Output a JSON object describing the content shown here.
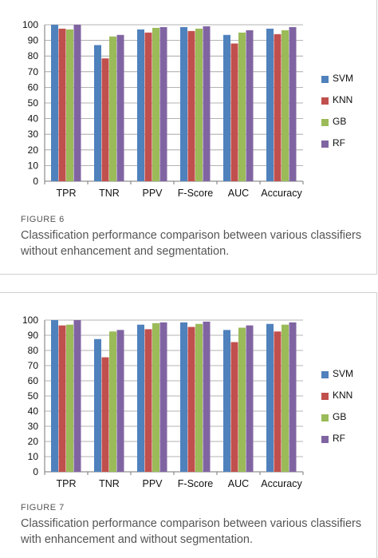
{
  "colors": {
    "SVM": "#4f81bd",
    "KNN": "#c0504d",
    "GB": "#9bbb59",
    "RF": "#8064a2",
    "grid": "#9a9a9a",
    "axis": "#777777"
  },
  "figures": [
    {
      "label": "FIGURE 6",
      "caption": "Classification performance comparison between various classifiers without enhancement and segmentation."
    },
    {
      "label": "FIGURE 7",
      "caption": "Classification performance comparison between various classifiers with enhancement and without segmentation."
    }
  ],
  "chart_data": [
    {
      "type": "bar",
      "title": "",
      "xlabel": "",
      "ylabel": "",
      "ylim": [
        0,
        100
      ],
      "yticks": [
        0,
        10,
        20,
        30,
        40,
        50,
        60,
        70,
        80,
        90,
        100
      ],
      "grid": "horizontal",
      "legend_position": "right",
      "categories": [
        "TPR",
        "TNR",
        "PPV",
        "F-Score",
        "AUC",
        "Accuracy"
      ],
      "series": [
        {
          "name": "SVM",
          "values": [
            100,
            87,
            97,
            98.5,
            93.5,
            97.5
          ]
        },
        {
          "name": "KNN",
          "values": [
            97.5,
            78.5,
            95,
            96,
            88,
            94
          ]
        },
        {
          "name": "GB",
          "values": [
            97,
            92.5,
            98,
            97.5,
            95,
            96.5
          ]
        },
        {
          "name": "RF",
          "values": [
            100,
            93.5,
            98.5,
            99,
            96.5,
            98.5
          ]
        }
      ]
    },
    {
      "type": "bar",
      "title": "",
      "xlabel": "",
      "ylabel": "",
      "ylim": [
        0,
        100
      ],
      "yticks": [
        0,
        10,
        20,
        30,
        40,
        50,
        60,
        70,
        80,
        90,
        100
      ],
      "grid": "horizontal",
      "legend_position": "right",
      "categories": [
        "TPR",
        "TNR",
        "PPV",
        "F-Score",
        "AUC",
        "Accuracy"
      ],
      "series": [
        {
          "name": "SVM",
          "values": [
            100,
            87.5,
            97,
            98.5,
            93.5,
            97.5
          ]
        },
        {
          "name": "KNN",
          "values": [
            96.5,
            75.5,
            94,
            95.5,
            85.5,
            92.5
          ]
        },
        {
          "name": "GB",
          "values": [
            97,
            92.5,
            98,
            97.5,
            95,
            97
          ]
        },
        {
          "name": "RF",
          "values": [
            100,
            93.5,
            98.5,
            99,
            96.5,
            98.5
          ]
        }
      ]
    }
  ]
}
